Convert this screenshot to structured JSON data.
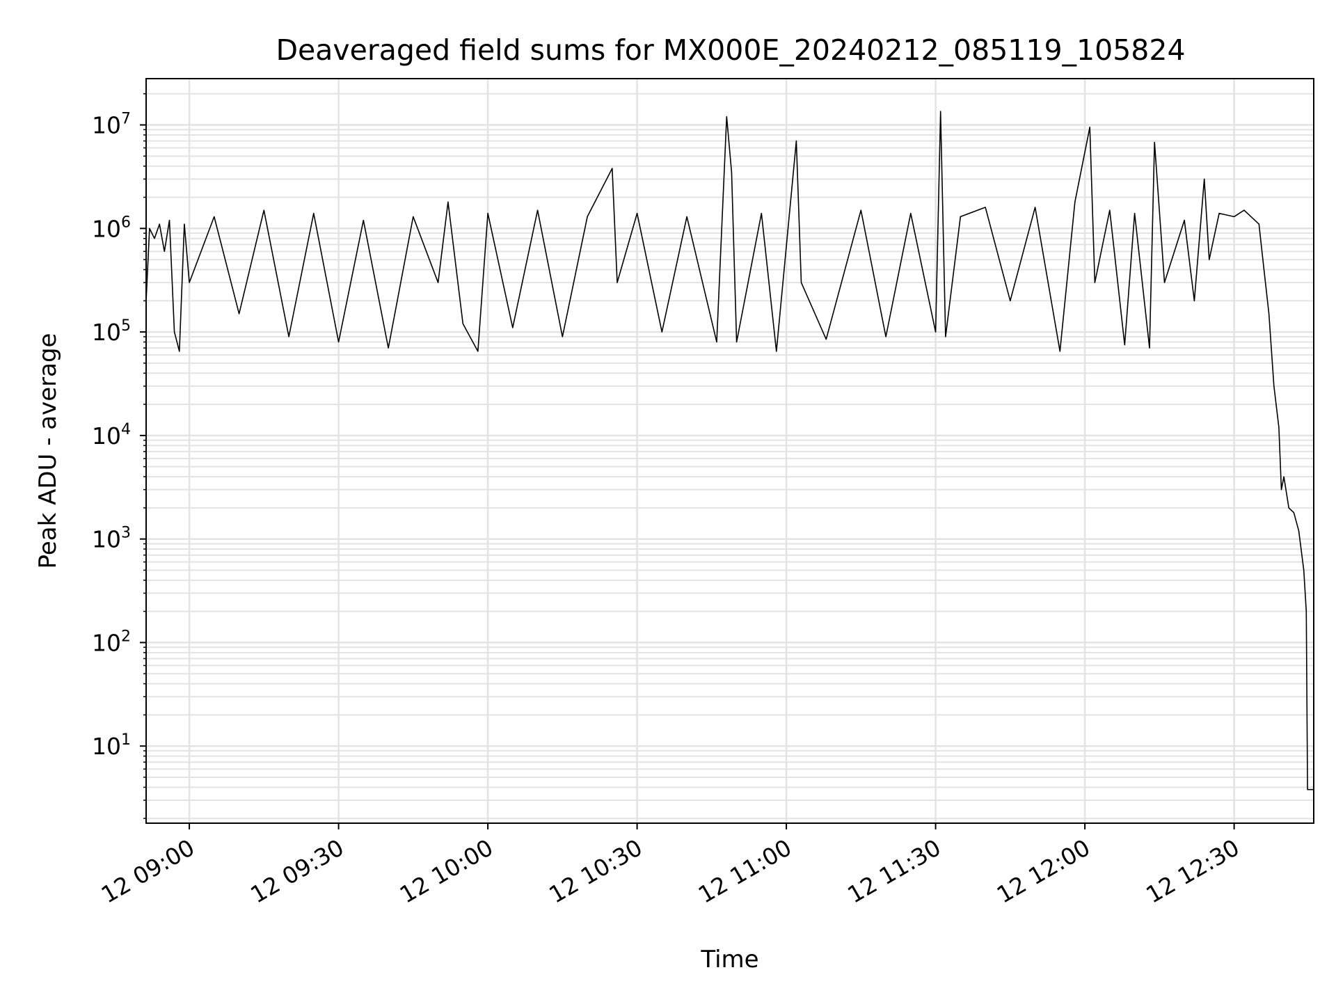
{
  "chart_data": {
    "type": "line",
    "title": "Deaveraged field sums for MX000E_20240212_085119_105824",
    "xlabel": "Time",
    "ylabel": "Peak ADU - average",
    "yscale": "log",
    "grid": true,
    "line_color": "#000000",
    "grid_color": "#e3e3e3",
    "x_range": [
      "2024-02-12 08:51:19",
      "2024-02-12 12:46:00"
    ],
    "ylim": [
      1.8,
      28000000
    ],
    "x_ticks": [
      {
        "time": "2024-02-12 09:00",
        "label": "12 09:00"
      },
      {
        "time": "2024-02-12 09:30",
        "label": "12 09:30"
      },
      {
        "time": "2024-02-12 10:00",
        "label": "12 10:00"
      },
      {
        "time": "2024-02-12 10:30",
        "label": "12 10:30"
      },
      {
        "time": "2024-02-12 11:00",
        "label": "12 11:00"
      },
      {
        "time": "2024-02-12 11:30",
        "label": "12 11:30"
      },
      {
        "time": "2024-02-12 12:00",
        "label": "12 12:00"
      },
      {
        "time": "2024-02-12 12:30",
        "label": "12 12:30"
      }
    ],
    "y_ticks": [
      {
        "value": 10,
        "base": "10",
        "exponent": "1"
      },
      {
        "value": 100,
        "base": "10",
        "exponent": "2"
      },
      {
        "value": 1000,
        "base": "10",
        "exponent": "3"
      },
      {
        "value": 10000,
        "base": "10",
        "exponent": "4"
      },
      {
        "value": 100000,
        "base": "10",
        "exponent": "5"
      },
      {
        "value": 1000000,
        "base": "10",
        "exponent": "6"
      },
      {
        "value": 10000000,
        "base": "10",
        "exponent": "7"
      }
    ],
    "series": [
      {
        "points": [
          [
            "2024-02-12 08:51:19",
            200000
          ],
          [
            "2024-02-12 08:52:00",
            1000000
          ],
          [
            "2024-02-12 08:53:00",
            800000
          ],
          [
            "2024-02-12 08:54:00",
            1100000
          ],
          [
            "2024-02-12 08:55:00",
            600000
          ],
          [
            "2024-02-12 08:56:00",
            1200000
          ],
          [
            "2024-02-12 08:57:00",
            100000
          ],
          [
            "2024-02-12 08:58:00",
            65000
          ],
          [
            "2024-02-12 08:59:00",
            1100000
          ],
          [
            "2024-02-12 09:00:00",
            300000
          ],
          [
            "2024-02-12 09:05:00",
            1300000
          ],
          [
            "2024-02-12 09:10:00",
            150000
          ],
          [
            "2024-02-12 09:15:00",
            1500000
          ],
          [
            "2024-02-12 09:20:00",
            90000
          ],
          [
            "2024-02-12 09:25:00",
            1400000
          ],
          [
            "2024-02-12 09:30:00",
            80000
          ],
          [
            "2024-02-12 09:35:00",
            1200000
          ],
          [
            "2024-02-12 09:40:00",
            70000
          ],
          [
            "2024-02-12 09:45:00",
            1300000
          ],
          [
            "2024-02-12 09:50:00",
            300000
          ],
          [
            "2024-02-12 09:52:00",
            1800000
          ],
          [
            "2024-02-12 09:55:00",
            120000
          ],
          [
            "2024-02-12 09:58:00",
            65000
          ],
          [
            "2024-02-12 10:00:00",
            1400000
          ],
          [
            "2024-02-12 10:05:00",
            110000
          ],
          [
            "2024-02-12 10:10:00",
            1500000
          ],
          [
            "2024-02-12 10:15:00",
            90000
          ],
          [
            "2024-02-12 10:20:00",
            1300000
          ],
          [
            "2024-02-12 10:25:00",
            3800000
          ],
          [
            "2024-02-12 10:26:00",
            300000
          ],
          [
            "2024-02-12 10:30:00",
            1400000
          ],
          [
            "2024-02-12 10:35:00",
            100000
          ],
          [
            "2024-02-12 10:40:00",
            1300000
          ],
          [
            "2024-02-12 10:46:00",
            80000
          ],
          [
            "2024-02-12 10:48:00",
            12000000
          ],
          [
            "2024-02-12 10:49:00",
            3500000
          ],
          [
            "2024-02-12 10:50:00",
            80000
          ],
          [
            "2024-02-12 10:55:00",
            1400000
          ],
          [
            "2024-02-12 10:58:00",
            65000
          ],
          [
            "2024-02-12 11:02:00",
            7000000
          ],
          [
            "2024-02-12 11:03:00",
            300000
          ],
          [
            "2024-02-12 11:08:00",
            85000
          ],
          [
            "2024-02-12 11:15:00",
            1500000
          ],
          [
            "2024-02-12 11:20:00",
            90000
          ],
          [
            "2024-02-12 11:25:00",
            1400000
          ],
          [
            "2024-02-12 11:30:00",
            100000
          ],
          [
            "2024-02-12 11:31:00",
            13500000
          ],
          [
            "2024-02-12 11:32:00",
            90000
          ],
          [
            "2024-02-12 11:35:00",
            1300000
          ],
          [
            "2024-02-12 11:40:00",
            1600000
          ],
          [
            "2024-02-12 11:45:00",
            200000
          ],
          [
            "2024-02-12 11:50:00",
            1600000
          ],
          [
            "2024-02-12 11:55:00",
            65000
          ],
          [
            "2024-02-12 11:58:00",
            1800000
          ],
          [
            "2024-02-12 12:01:00",
            9500000
          ],
          [
            "2024-02-12 12:02:00",
            300000
          ],
          [
            "2024-02-12 12:05:00",
            1500000
          ],
          [
            "2024-02-12 12:08:00",
            75000
          ],
          [
            "2024-02-12 12:10:00",
            1400000
          ],
          [
            "2024-02-12 12:13:00",
            70000
          ],
          [
            "2024-02-12 12:14:00",
            6800000
          ],
          [
            "2024-02-12 12:16:00",
            300000
          ],
          [
            "2024-02-12 12:20:00",
            1200000
          ],
          [
            "2024-02-12 12:22:00",
            200000
          ],
          [
            "2024-02-12 12:24:00",
            3000000
          ],
          [
            "2024-02-12 12:25:00",
            500000
          ],
          [
            "2024-02-12 12:27:00",
            1400000
          ],
          [
            "2024-02-12 12:30:00",
            1300000
          ],
          [
            "2024-02-12 12:32:00",
            1500000
          ],
          [
            "2024-02-12 12:35:00",
            1100000
          ],
          [
            "2024-02-12 12:36:00",
            400000
          ],
          [
            "2024-02-12 12:37:00",
            150000
          ],
          [
            "2024-02-12 12:38:00",
            30000
          ],
          [
            "2024-02-12 12:39:00",
            12000
          ],
          [
            "2024-02-12 12:39:30",
            3000
          ],
          [
            "2024-02-12 12:40:00",
            4000
          ],
          [
            "2024-02-12 12:41:00",
            2000
          ],
          [
            "2024-02-12 12:42:00",
            1800
          ],
          [
            "2024-02-12 12:43:00",
            1200
          ],
          [
            "2024-02-12 12:44:00",
            500
          ],
          [
            "2024-02-12 12:44:30",
            200
          ],
          [
            "2024-02-12 12:44:45",
            3.8
          ],
          [
            "2024-02-12 12:46:00",
            3.8
          ]
        ]
      }
    ]
  }
}
